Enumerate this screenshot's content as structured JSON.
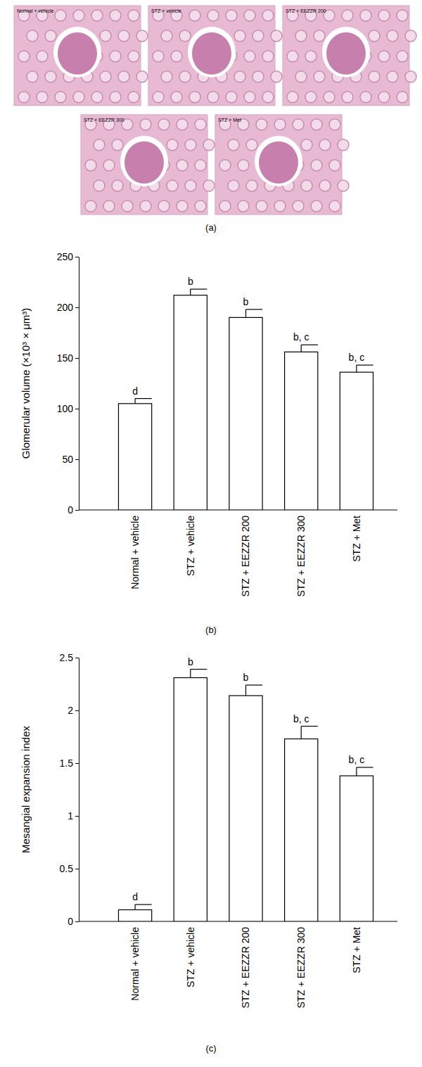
{
  "images": {
    "panel_label": "(a)",
    "captions": [
      "Normal + vehicle",
      "STZ + vehicle",
      "STZ + EEZZR 200",
      "STZ + EEZZR 300",
      "STZ + Met"
    ]
  },
  "chart_data": [
    {
      "type": "bar",
      "panel_label": "(b)",
      "ylabel": "Glomerular volume (×10³ × μm³)",
      "categories": [
        "Normal + vehicle",
        "STZ + vehicle",
        "STZ + EEZZR 200",
        "STZ + EEZZR 300",
        "STZ + Met"
      ],
      "values": [
        105,
        212,
        190,
        156,
        136
      ],
      "errors": [
        5,
        6,
        8,
        7,
        7
      ],
      "annotations": [
        "d",
        "b",
        "b",
        "b, c",
        "b, c"
      ],
      "color": "#ffffff",
      "ylim": [
        0,
        250
      ],
      "yticks": [
        0,
        50,
        100,
        150,
        200,
        250
      ],
      "grid": false
    },
    {
      "type": "bar",
      "panel_label": "(c)",
      "ylabel": "Mesangial expansion index",
      "categories": [
        "Normal + vehicle",
        "STZ + vehicle",
        "STZ + EEZZR 200",
        "STZ + EEZZR 300",
        "STZ + Met"
      ],
      "values": [
        0.11,
        2.31,
        2.14,
        1.73,
        1.38
      ],
      "errors": [
        0.05,
        0.08,
        0.1,
        0.12,
        0.08
      ],
      "annotations": [
        "d",
        "b",
        "b",
        "b, c",
        "b, c"
      ],
      "color": "#ffffff",
      "ylim": [
        0,
        2.5
      ],
      "yticks": [
        0,
        0.5,
        1,
        1.5,
        2,
        2.5
      ],
      "grid": false
    }
  ]
}
